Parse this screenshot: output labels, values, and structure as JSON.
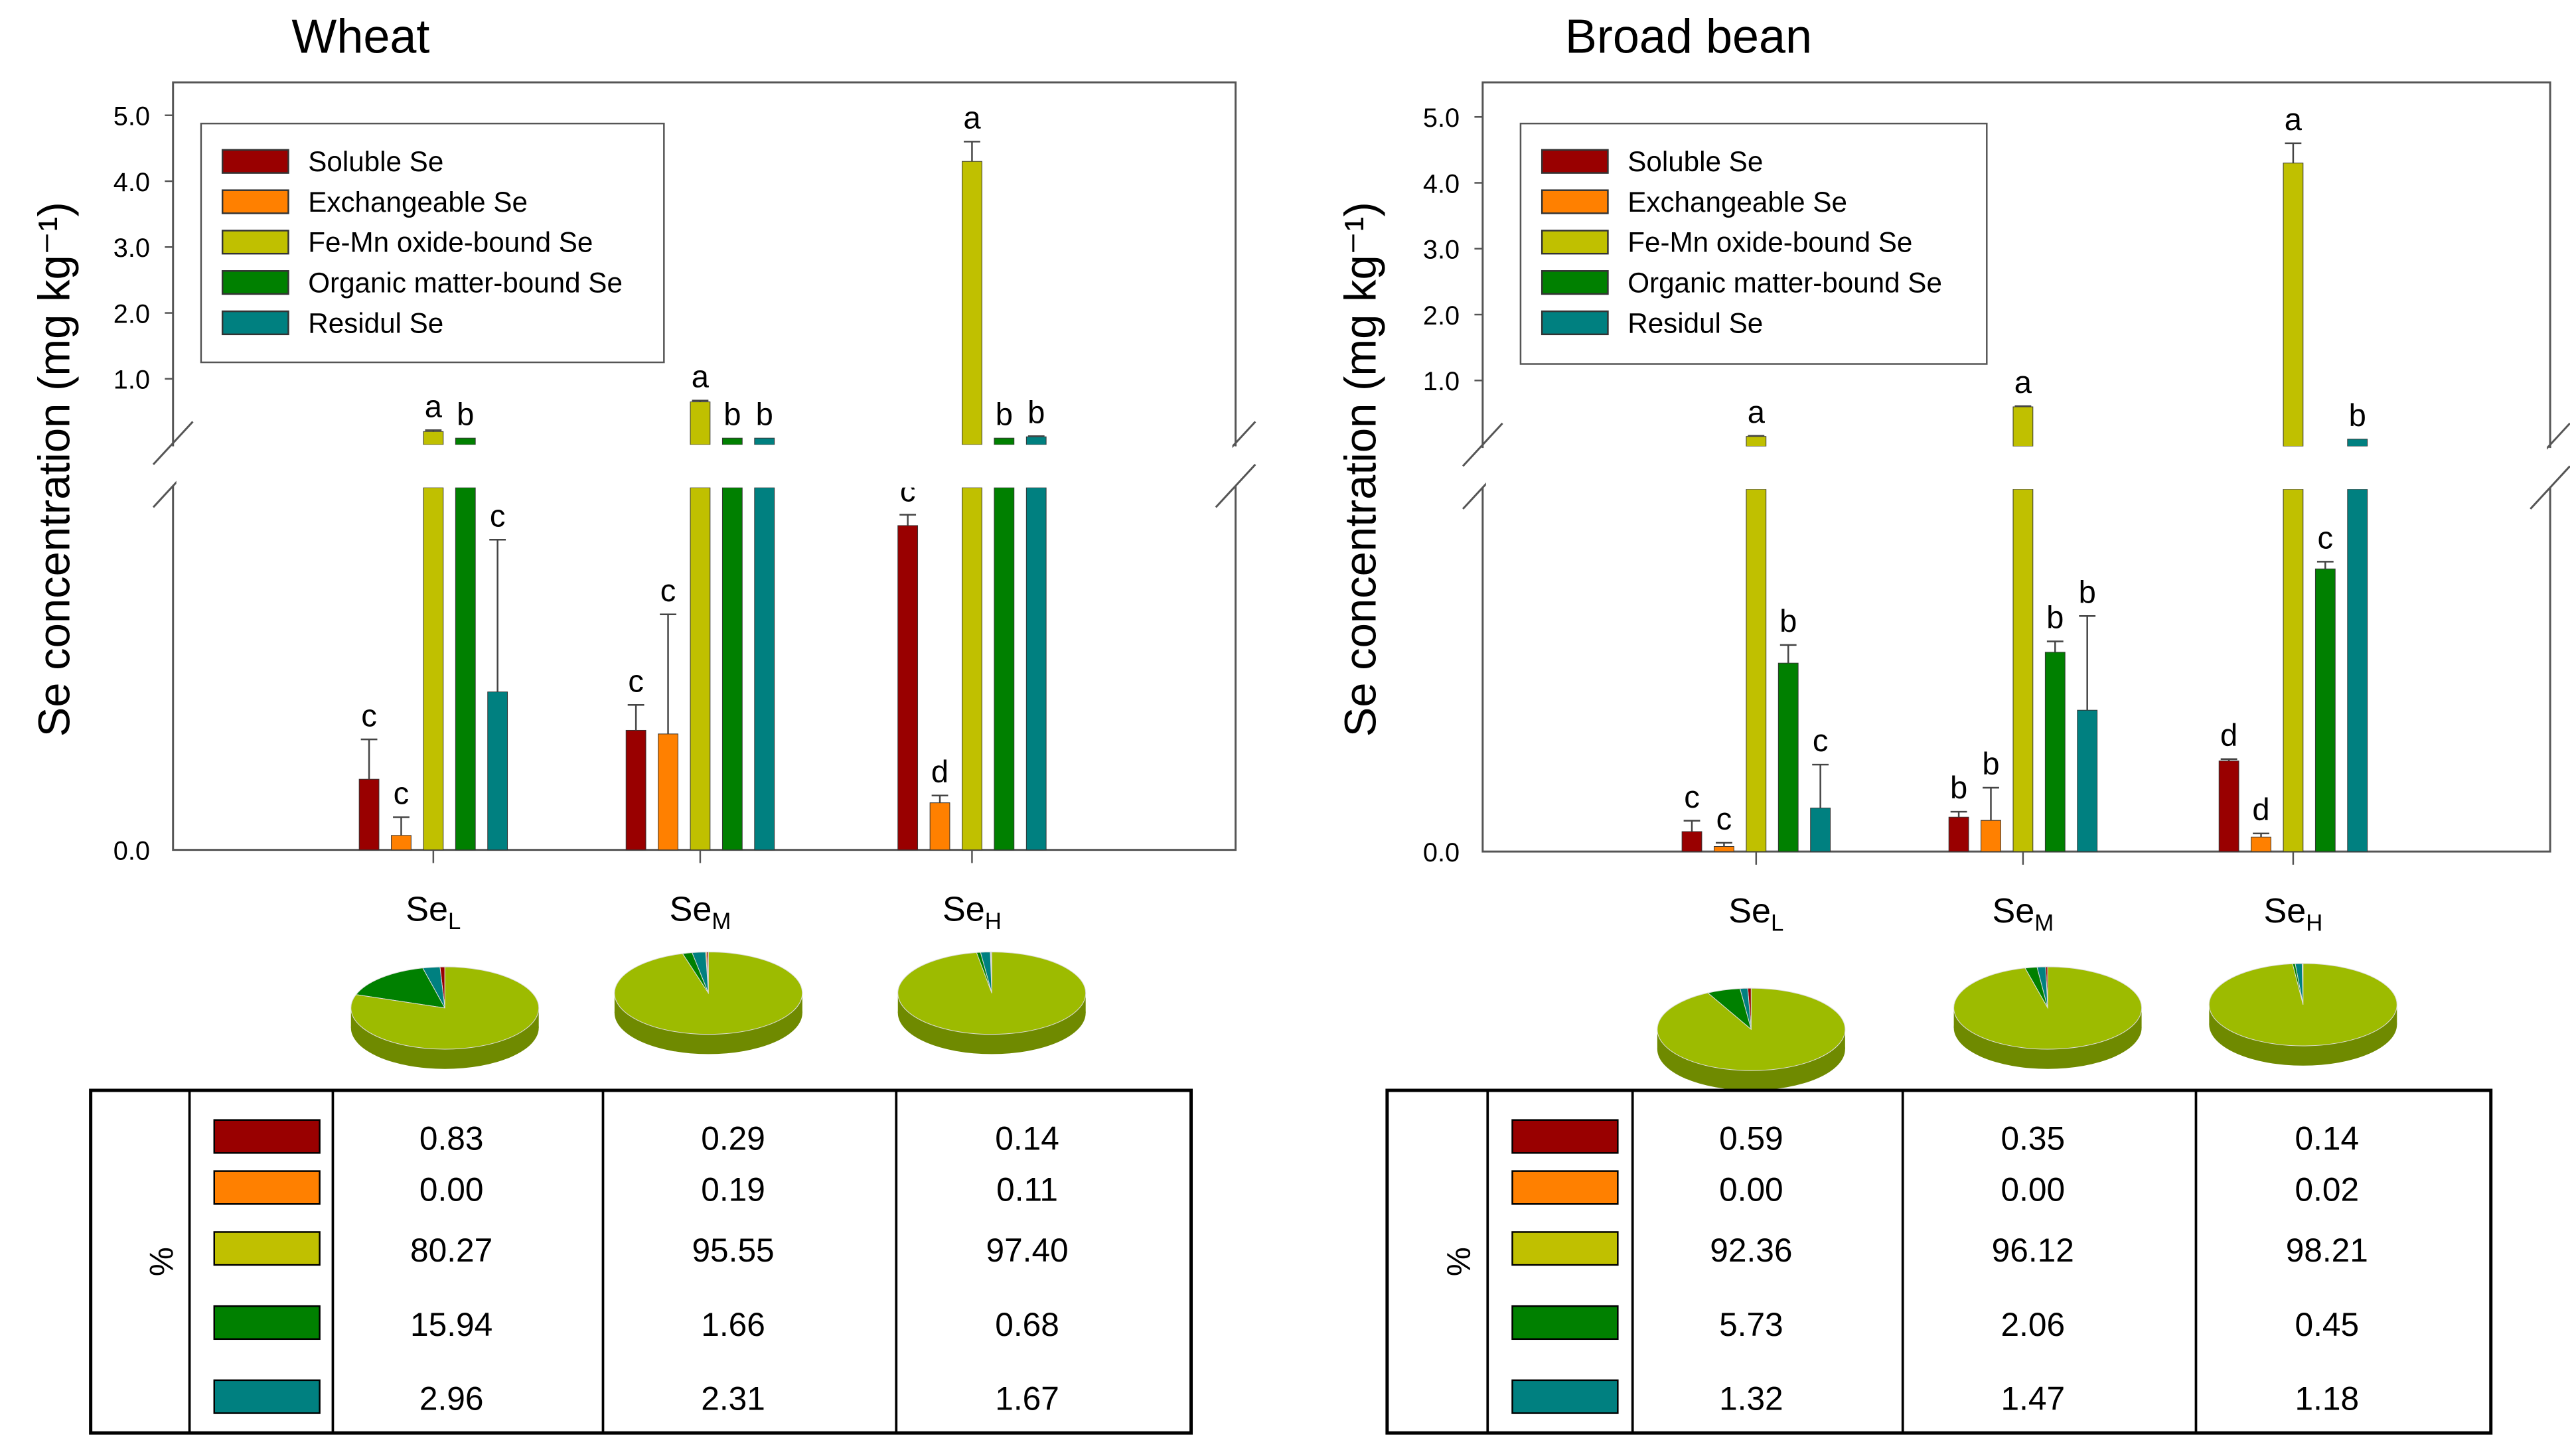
{
  "colors": {
    "soluble": "#990000",
    "exchangeable": "#FF8000",
    "femn": "#C0C000",
    "organic": "#008000",
    "residual": "#008080",
    "pie_main": "#9DBB00",
    "pie_side": "#6F8A00"
  },
  "chart_data": [
    {
      "type": "bar",
      "title": "Wheat",
      "ylabel": "Se concentration (mg kg⁻¹)",
      "xlabel": "",
      "broken_axis": true,
      "lower_ylim": [
        0,
        0.1
      ],
      "upper_ylim": [
        0,
        5.5
      ],
      "upper_ticks": [
        "5.0",
        "4.0",
        "3.0",
        "2.0",
        "1.0"
      ],
      "upper_tick_values": [
        5,
        4,
        3,
        2,
        1
      ],
      "zero_tick": "0.0",
      "legend_position": "top-left",
      "categories": [
        {
          "base": "Se",
          "sub": "L"
        },
        {
          "base": "Se",
          "sub": "M"
        },
        {
          "base": "Se",
          "sub": "H"
        }
      ],
      "series": [
        {
          "name": "Soluble Se",
          "key": "soluble",
          "values": [
            0.0195,
            0.033,
            0.0895
          ],
          "errors": [
            0.011,
            0.007,
            0.003
          ],
          "letters": [
            "c",
            "c",
            "c"
          ]
        },
        {
          "name": "Exchangeable Se",
          "key": "exchangeable",
          "values": [
            0.004,
            0.032,
            0.013
          ],
          "errors": [
            0.005,
            0.033,
            0.002
          ],
          "letters": [
            "c",
            "c",
            "d"
          ]
        },
        {
          "name": "Fe-Mn oxide-bound Se",
          "key": "femn",
          "values": [
            0.2,
            0.65,
            4.3
          ],
          "errors": [
            0.02,
            0.02,
            0.3
          ],
          "letters": [
            "a",
            "a",
            "a"
          ]
        },
        {
          "name": "Organic matter-bound Se",
          "key": "organic",
          "values": [
            0.1,
            0.1,
            0.1
          ],
          "errors": [
            0,
            0,
            0
          ],
          "letters": [
            "b",
            "b",
            "b"
          ]
        },
        {
          "name": "Residul Se",
          "key": "residual",
          "values": [
            0.0436,
            0.1,
            0.12
          ],
          "errors": [
            0.042,
            0,
            0.01
          ],
          "letters": [
            "c",
            "b",
            "b"
          ]
        }
      ],
      "pies": [
        [
          "0.83",
          "0.00",
          "80.27",
          "15.94",
          "2.96"
        ],
        [
          "0.29",
          "0.19",
          "95.55",
          "1.66",
          "2.31"
        ],
        [
          "0.14",
          "0.11",
          "97.40",
          "0.68",
          "1.67"
        ]
      ],
      "table_label": "%"
    },
    {
      "type": "bar",
      "title": "Broad bean",
      "ylabel": "Se concentration (mg kg⁻¹)",
      "xlabel": "",
      "broken_axis": true,
      "lower_ylim": [
        0,
        0.1
      ],
      "upper_ylim": [
        0,
        5.5
      ],
      "upper_ticks": [
        "5.0",
        "4.0",
        "3.0",
        "2.0",
        "1.0"
      ],
      "upper_tick_values": [
        5,
        4,
        3,
        2,
        1
      ],
      "zero_tick": "0.0",
      "legend_position": "top-left",
      "categories": [
        {
          "base": "Se",
          "sub": "L"
        },
        {
          "base": "Se",
          "sub": "M"
        },
        {
          "base": "Se",
          "sub": "H"
        }
      ],
      "series": [
        {
          "name": "Soluble Se",
          "key": "soluble",
          "values": [
            0.0055,
            0.0095,
            0.025
          ],
          "errors": [
            0.003,
            0.0015,
            0.0005
          ],
          "letters": [
            "c",
            "b",
            "d"
          ]
        },
        {
          "name": "Exchangeable Se",
          "key": "exchangeable",
          "values": [
            0.0014,
            0.0086,
            0.004
          ],
          "errors": [
            0.001,
            0.009,
            0.001
          ],
          "letters": [
            "c",
            "b",
            "d"
          ]
        },
        {
          "name": "Fe-Mn oxide-bound Se",
          "key": "femn",
          "values": [
            0.15,
            0.6,
            4.3
          ],
          "errors": [
            0.01,
            0.01,
            0.3
          ],
          "letters": [
            "a",
            "a",
            "a"
          ]
        },
        {
          "name": "Organic matter-bound Se",
          "key": "organic",
          "values": [
            0.052,
            0.055,
            0.078
          ],
          "errors": [
            0.005,
            0.003,
            0.002
          ],
          "letters": [
            "b",
            "b",
            "c"
          ]
        },
        {
          "name": "Residul Se",
          "key": "residual",
          "values": [
            0.012,
            0.039,
            0.11
          ],
          "errors": [
            0.012,
            0.026,
            0
          ],
          "letters": [
            "c",
            "b",
            "b"
          ]
        }
      ],
      "pies": [
        [
          "0.59",
          "0.00",
          "92.36",
          "5.73",
          "1.32"
        ],
        [
          "0.35",
          "0.00",
          "96.12",
          "2.06",
          "1.47"
        ],
        [
          "0.14",
          "0.02",
          "98.21",
          "0.45",
          "1.18"
        ]
      ],
      "table_label": "%"
    }
  ]
}
